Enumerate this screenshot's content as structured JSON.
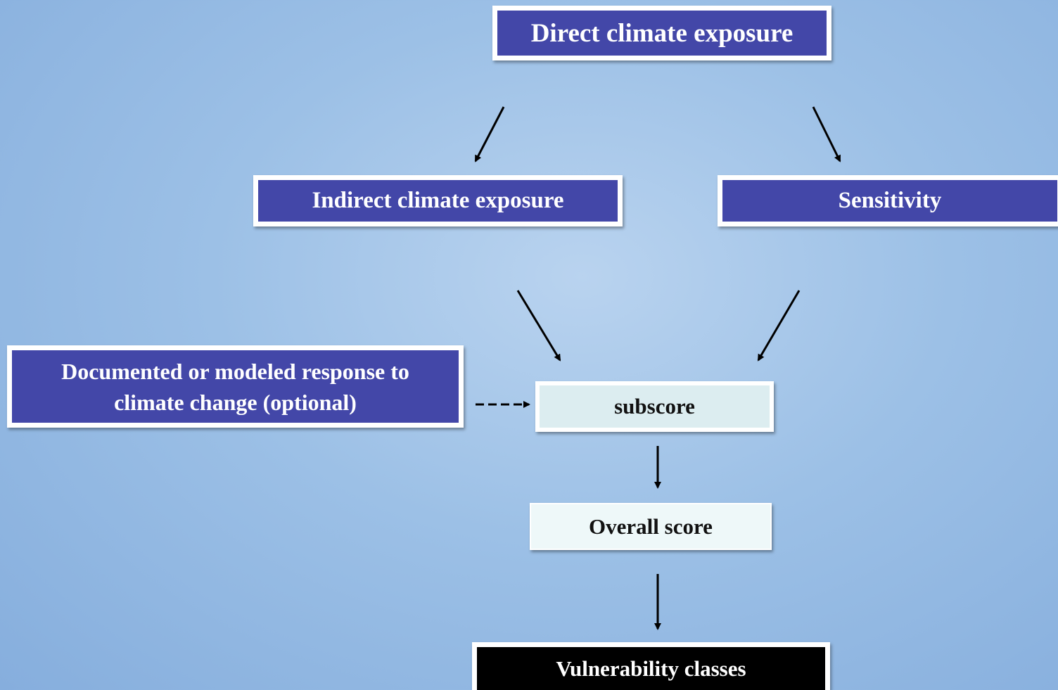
{
  "nodes": [
    {
      "label": "Direct climate exposure"
    },
    {
      "label": "Indirect climate exposure"
    },
    {
      "label": "Sensitivity"
    },
    {
      "label": "Documented or modeled response to climate change (optional)"
    },
    {
      "label": "subscore"
    },
    {
      "label": "Overall score"
    },
    {
      "label": "Vulnerability classes"
    }
  ]
}
